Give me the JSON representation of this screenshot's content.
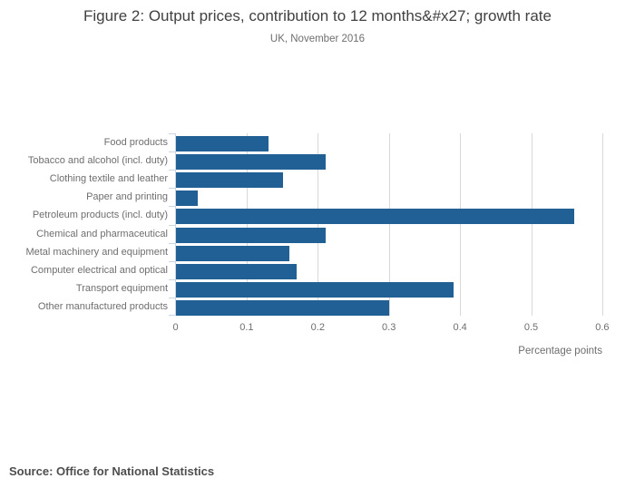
{
  "source": "Source: Office for National Statistics",
  "chart_data": {
    "type": "bar",
    "orientation": "horizontal",
    "title": "Figure 2: Output prices, contribution to 12 months&#x27; growth rate",
    "subtitle": "UK, November 2016",
    "categories": [
      "Food products",
      "Tobacco and alcohol (incl. duty)",
      "Clothing textile and leather",
      "Paper and printing",
      "Petroleum products (incl. duty)",
      "Chemical and pharmaceutical",
      "Metal machinery and equipment",
      "Computer electrical and optical",
      "Transport equipment",
      "Other manufactured products"
    ],
    "values": [
      0.13,
      0.21,
      0.15,
      0.03,
      0.56,
      0.21,
      0.16,
      0.17,
      0.39,
      0.3
    ],
    "xlabel": "Percentage points",
    "xlim": [
      0,
      0.6
    ],
    "xticks": [
      0,
      0.1,
      0.2,
      0.3,
      0.4,
      0.5,
      0.6
    ],
    "bar_color": "#206095",
    "axis_color": "#c9d4e4",
    "grid_color": "#d8d8d8",
    "grid": true,
    "legend": false
  }
}
